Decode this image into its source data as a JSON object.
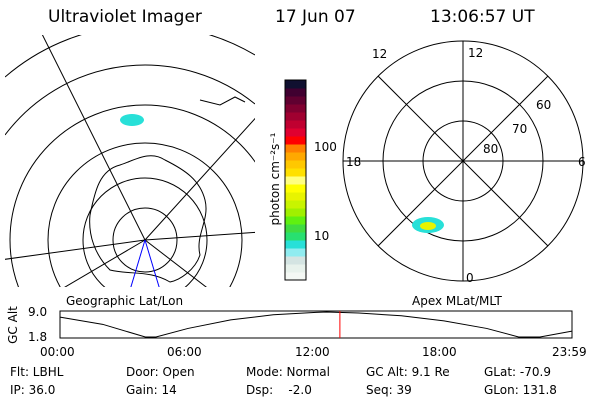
{
  "header": {
    "instrument": "Ultraviolet Imager",
    "date": "17 Jun 07",
    "time": "13:06:57 UT"
  },
  "colorbar": {
    "label": "photon cm⁻²s⁻¹",
    "ticks": [
      "100",
      "10"
    ],
    "colors": [
      "#f4f8f4",
      "#e8f2ec",
      "#d4e4e2",
      "#90ecf0",
      "#28e0d8",
      "#28e070",
      "#40dc40",
      "#60f010",
      "#a0f000",
      "#c8f400",
      "#e8f400",
      "#ffff00",
      "#ffff80",
      "#ffe000",
      "#ffc800",
      "#ffa800",
      "#ff8000",
      "#ff0000",
      "#e00030",
      "#c00030",
      "#a00030",
      "#800030",
      "#600030",
      "#400030",
      "#101030"
    ]
  },
  "left_map": {
    "label": "Geographic Lat/Lon"
  },
  "right_map": {
    "label": "Apex MLat/MLT",
    "mlt_labels": [
      "12",
      "6",
      "0",
      "18"
    ],
    "lat_labels": [
      "60",
      "70",
      "80"
    ]
  },
  "chart_data": {
    "type": "line",
    "ylabel": "GC Alt",
    "yticks": [
      "9.0",
      "1.8"
    ],
    "xticks": [
      "00:00",
      "06:00",
      "12:00",
      "18:00",
      "23:59"
    ],
    "x": [
      0,
      2,
      4,
      4.5,
      6,
      8,
      10,
      12,
      12.5,
      14,
      16,
      18,
      20,
      21.5,
      22.5,
      24
    ],
    "y": [
      7.6,
      5.5,
      1.8,
      1.8,
      4.3,
      6.8,
      8.3,
      9.0,
      9.1,
      8.8,
      8.0,
      6.5,
      4.3,
      1.8,
      1.8,
      3.5
    ],
    "ylim": [
      1.8,
      9.1
    ],
    "current_time": 13.12,
    "current_marker_color": "#ff0000"
  },
  "status": {
    "flt": "Flt: LBHL",
    "ip": "IP: 36.0",
    "door": "Door: Open",
    "gain": "Gain: 14",
    "mode": "Mode: Normal",
    "dsp": "Dsp:    -2.0",
    "gcalt": "GC Alt: 9.1 Re",
    "seq": "Seq: 39",
    "glat": "GLat: -70.9",
    "glon": "GLon: 131.8"
  }
}
